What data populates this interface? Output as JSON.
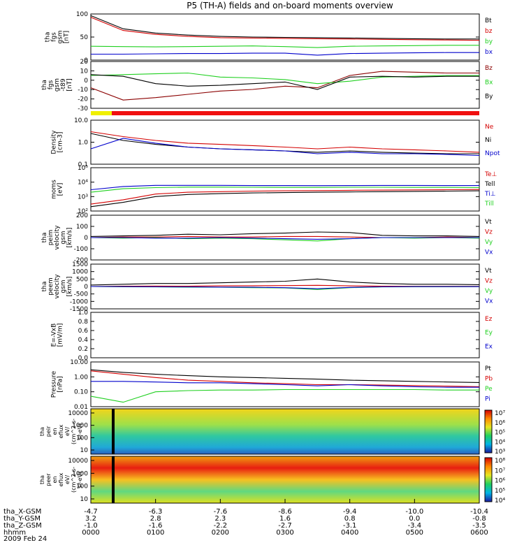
{
  "chart_data": {
    "type": "line",
    "title": "P5 (TH-A) fields and on-board moments overview",
    "date": "2009 Feb 24",
    "time_ticks": [
      "0000",
      "0100",
      "0200",
      "0300",
      "0400",
      "0500",
      "0600"
    ],
    "orbit_rows": [
      {
        "label": "tha_X-GSM",
        "values": [
          "-4.7",
          "-6.3",
          "-7.6",
          "-8.6",
          "-9.4",
          "-10.0",
          "-10.4"
        ]
      },
      {
        "label": "tha_Y-GSM",
        "values": [
          "3.2",
          "2.8",
          "2.3",
          "1.6",
          "0.8",
          "0.0",
          "-0.8"
        ]
      },
      {
        "label": "tha_Z-GSM",
        "values": [
          "-1.0",
          "-1.6",
          "-2.2",
          "-2.7",
          "-3.1",
          "-3.4",
          "-3.5"
        ]
      },
      {
        "label": "hhmm",
        "values": []
      }
    ],
    "colors": {
      "black": "#000000",
      "red": "#d40000",
      "green": "#20d020",
      "blue": "#0000cc",
      "maroon": "#8b0000"
    },
    "panels": [
      {
        "id": "fgs_gsm",
        "ylabel": [
          "tha",
          "fgs",
          "gsm",
          "[nT]"
        ],
        "ylim": [
          -40,
          100
        ],
        "yticks": [
          "100",
          "50",
          "0"
        ],
        "yscale": "linear",
        "series": [
          {
            "name": "Bt",
            "color": "#000000",
            "values": [
              95,
              55,
              42,
              36,
              32,
              30,
              29,
              28,
              27,
              26,
              25,
              24,
              24
            ]
          },
          {
            "name": "bz",
            "color": "#d40000",
            "values": [
              90,
              50,
              38,
              32,
              28,
              27,
              26,
              25,
              24,
              23,
              22,
              21,
              20
            ]
          },
          {
            "name": "by",
            "color": "#20d020",
            "values": [
              2,
              1,
              0,
              1,
              2,
              3,
              1,
              -2,
              2,
              3,
              4,
              5,
              5
            ]
          },
          {
            "name": "bx",
            "color": "#0000cc",
            "values": [
              -22,
              -22,
              -21,
              -20,
              -20,
              -19,
              -19,
              -25,
              -20,
              -19,
              -18,
              -17,
              -17
            ]
          }
        ]
      },
      {
        "id": "fgs_gsm_filtered",
        "ylabel": [
          "tha",
          "fgs",
          "gsm",
          "-t89",
          "[nT]"
        ],
        "ylim": [
          -35,
          22
        ],
        "yticks": [
          "20",
          "10",
          "0",
          "-10",
          "-20",
          "-30"
        ],
        "yscale": "linear",
        "series": [
          {
            "name": "Bz",
            "color": "#8b0000",
            "values": [
              -10,
              -25,
              -22,
              -18,
              -14,
              -12,
              -8,
              -10,
              5,
              10,
              9,
              8,
              8
            ]
          },
          {
            "name": "Bx",
            "color": "#20d020",
            "values": [
              5,
              6,
              7,
              8,
              3,
              2,
              0,
              -5,
              -2,
              3,
              4,
              5,
              5
            ]
          },
          {
            "name": "By",
            "color": "#000000",
            "values": [
              6,
              4,
              -5,
              -8,
              -7,
              -5,
              -3,
              -12,
              3,
              4,
              3,
              4,
              4
            ]
          }
        ]
      },
      {
        "id": "density",
        "ylabel": [
          "Density",
          "[cm-3]"
        ],
        "ylim": [
          0.1,
          10
        ],
        "yticks": [
          "10.0",
          "1.0",
          "0.1"
        ],
        "yscale": "log",
        "series": [
          {
            "name": "Ne",
            "color": "#d40000",
            "values": [
              3.0,
              1.8,
              1.2,
              0.9,
              0.8,
              0.7,
              0.6,
              0.5,
              0.6,
              0.5,
              0.45,
              0.4,
              0.35
            ]
          },
          {
            "name": "Ni",
            "color": "#000000",
            "values": [
              2.5,
              1.2,
              0.8,
              0.6,
              0.5,
              0.45,
              0.4,
              0.35,
              0.4,
              0.35,
              0.32,
              0.3,
              0.3
            ]
          },
          {
            "name": "Npot",
            "color": "#0000cc",
            "values": [
              0.5,
              1.5,
              0.9,
              0.6,
              0.5,
              0.45,
              0.4,
              0.3,
              0.35,
              0.3,
              0.3,
              0.28,
              0.25
            ]
          }
        ]
      },
      {
        "id": "temperature",
        "ylabel": [
          "moms",
          "[eV]"
        ],
        "ylim": [
          100,
          100000
        ],
        "yticks": [
          "10⁵",
          "10⁴",
          "10³",
          "10²"
        ],
        "yscale": "log",
        "series": [
          {
            "name": "Te⊥",
            "color": "#d40000",
            "values": [
              300,
              600,
              1500,
              2000,
              2200,
              2400,
              2500,
              2600,
              2700,
              2800,
              2900,
              3000,
              3100
            ]
          },
          {
            "name": "Tell",
            "color": "#000000",
            "values": [
              200,
              400,
              1000,
              1400,
              1600,
              1800,
              1900,
              2000,
              2100,
              2200,
              2300,
              2400,
              2500
            ]
          },
          {
            "name": "Ti⊥",
            "color": "#0000cc",
            "values": [
              3000,
              5000,
              6000,
              6000,
              6000,
              5800,
              5800,
              5700,
              5800,
              5900,
              5900,
              5800,
              5800
            ]
          },
          {
            "name": "Till",
            "color": "#20d020",
            "values": [
              2000,
              3500,
              4200,
              4500,
              4500,
              4400,
              4300,
              4300,
              4400,
              4400,
              4300,
              4300,
              4200
            ]
          }
        ]
      },
      {
        "id": "peim_velocity",
        "ylabel": [
          "tha",
          "peim",
          "velocity",
          "gsm",
          "[km/s]"
        ],
        "ylim": [
          -200,
          200
        ],
        "yticks": [
          "200",
          "100",
          "0",
          "-100",
          "-200"
        ],
        "yscale": "linear",
        "series": [
          {
            "name": "Vt",
            "color": "#000000",
            "values": [
              10,
              15,
              20,
              30,
              25,
              35,
              40,
              50,
              45,
              20,
              15,
              15,
              10
            ]
          },
          {
            "name": "Vz",
            "color": "#d40000",
            "values": [
              0,
              5,
              5,
              10,
              5,
              5,
              10,
              10,
              5,
              0,
              0,
              5,
              0
            ]
          },
          {
            "name": "Vy",
            "color": "#20d020",
            "values": [
              0,
              -5,
              0,
              -10,
              -5,
              -10,
              -20,
              -30,
              -10,
              0,
              -5,
              0,
              -5
            ]
          },
          {
            "name": "Vx",
            "color": "#0000cc",
            "values": [
              0,
              0,
              -5,
              -5,
              0,
              -5,
              -10,
              -15,
              -10,
              0,
              0,
              0,
              0
            ]
          }
        ]
      },
      {
        "id": "peem_velocity",
        "ylabel": [
          "tha",
          "peem",
          "velocity",
          "gsm",
          "[km/s]"
        ],
        "ylim": [
          -1500,
          1500
        ],
        "yticks": [
          "1500",
          "1000",
          "500",
          "0",
          "-500",
          "-1000",
          "-1500"
        ],
        "yscale": "linear",
        "series": [
          {
            "name": "Vt",
            "color": "#000000",
            "values": [
              100,
              150,
              200,
              200,
              250,
              300,
              350,
              500,
              300,
              200,
              150,
              150,
              120
            ]
          },
          {
            "name": "Vz",
            "color": "#d40000",
            "values": [
              0,
              20,
              30,
              20,
              40,
              50,
              60,
              80,
              40,
              20,
              10,
              10,
              10
            ]
          },
          {
            "name": "Vy",
            "color": "#20d020",
            "values": [
              0,
              -20,
              -30,
              -40,
              -50,
              -80,
              -100,
              -200,
              -80,
              -30,
              -20,
              -20,
              -10
            ]
          },
          {
            "name": "Vx",
            "color": "#0000cc",
            "values": [
              0,
              -10,
              -20,
              -30,
              -40,
              -50,
              -80,
              -150,
              -60,
              -20,
              -10,
              -10,
              -10
            ]
          }
        ]
      },
      {
        "id": "e_field",
        "ylabel": [
          "E=-VxB",
          "[mV/m]"
        ],
        "ylim": [
          0,
          1
        ],
        "yticks": [
          "1.0",
          "0.8",
          "0.6",
          "0.4",
          "0.2",
          "0.0"
        ],
        "yscale": "linear",
        "series": [
          {
            "name": "Ez",
            "color": "#d40000",
            "values": []
          },
          {
            "name": "Ey",
            "color": "#20d020",
            "values": []
          },
          {
            "name": "Ex",
            "color": "#0000cc",
            "values": []
          }
        ]
      },
      {
        "id": "pressure",
        "ylabel": [
          "Pressure",
          "[nPa]"
        ],
        "ylim": [
          0.01,
          10
        ],
        "yticks": [
          "10.00",
          "1.00",
          "0.10",
          "0.01"
        ],
        "yscale": "log",
        "series": [
          {
            "name": "Pt",
            "color": "#000000",
            "values": [
              3.0,
              2.0,
              1.5,
              1.2,
              1.0,
              0.9,
              0.8,
              0.7,
              0.6,
              0.55,
              0.5,
              0.45,
              0.42
            ]
          },
          {
            "name": "Pb",
            "color": "#d40000",
            "values": [
              2.5,
              1.5,
              0.9,
              0.6,
              0.5,
              0.4,
              0.35,
              0.3,
              0.3,
              0.28,
              0.26,
              0.24,
              0.22
            ]
          },
          {
            "name": "Pe",
            "color": "#20d020",
            "values": [
              0.05,
              0.02,
              0.1,
              0.12,
              0.13,
              0.13,
              0.14,
              0.14,
              0.14,
              0.14,
              0.14,
              0.13,
              0.13
            ]
          },
          {
            "name": "Pi",
            "color": "#0000cc",
            "values": [
              0.5,
              0.5,
              0.45,
              0.4,
              0.4,
              0.35,
              0.3,
              0.25,
              0.3,
              0.25,
              0.22,
              0.2,
              0.2
            ]
          }
        ]
      }
    ],
    "spectrograms": [
      {
        "id": "peir_eflux",
        "ylabel": [
          "tha",
          "peir",
          "en",
          "eflux",
          "eV/",
          "(cm^2-s-",
          "sr-eV)"
        ],
        "yticks": [
          "10000",
          "1000",
          "100",
          "10"
        ],
        "ylim": [
          10,
          20000
        ],
        "colorbar_labels": [
          "10⁷",
          "10⁶",
          "10⁵",
          "10⁴",
          "10³"
        ]
      },
      {
        "id": "peer_eflux",
        "ylabel": [
          "tha",
          "peer",
          "en",
          "eflux",
          "eV/",
          "(cm^2-s-",
          "sr-eV)"
        ],
        "yticks": [
          "10000",
          "1000",
          "100",
          "10"
        ],
        "ylim": [
          10,
          20000
        ],
        "colorbar_labels": [
          "10⁸",
          "10⁷",
          "10⁶",
          "10⁵",
          "10⁴"
        ]
      }
    ]
  }
}
